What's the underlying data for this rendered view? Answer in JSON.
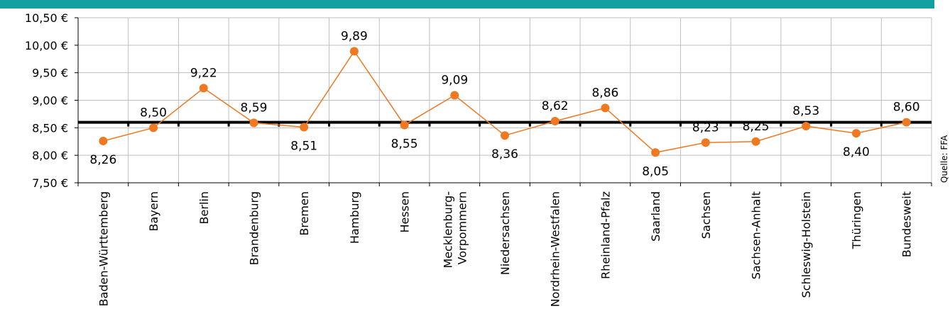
{
  "chart_data": {
    "type": "line",
    "categories": [
      "Baden-Württemberg",
      "Bayern",
      "Berlin",
      "Brandenburg",
      "Bremen",
      "Hamburg",
      "Hessen",
      "Mecklenburg-\nVorpommern",
      "Niedersachsen",
      "Nordrhein-Westfalen",
      "Rheinland-Pfalz",
      "Saarland",
      "Sachsen",
      "Sachsen-Anhalt",
      "Schleswig-Holstein",
      "Thüringen",
      "Bundesweit"
    ],
    "values": [
      8.26,
      8.5,
      9.22,
      8.59,
      8.51,
      9.89,
      8.55,
      9.09,
      8.36,
      8.62,
      8.86,
      8.05,
      8.23,
      8.25,
      8.53,
      8.4,
      8.6
    ],
    "data_labels": [
      "8,26",
      "8,50",
      "9,22",
      "8,59",
      "8,51",
      "9,89",
      "8,55",
      "9,09",
      "8,36",
      "8,62",
      "8,86",
      "8,05",
      "8,23",
      "8,25",
      "8,53",
      "8,40",
      "8,60"
    ],
    "ylim": [
      7.5,
      10.5
    ],
    "yticks": [
      7.5,
      8.0,
      8.5,
      9.0,
      9.5,
      10.0,
      10.5
    ],
    "ytick_labels": [
      "7,50 €",
      "8,00 €",
      "8,50 €",
      "9,00 €",
      "9,50 €",
      "10,00 €",
      "10,50 €"
    ],
    "reference_line": 8.6,
    "grid": true,
    "legend": "none",
    "source": "Quelle: FFA",
    "colors": {
      "series": "#F07820",
      "reference": "#000000",
      "grid": "#bfbfbf",
      "top_bar": "#12A0A0"
    }
  }
}
